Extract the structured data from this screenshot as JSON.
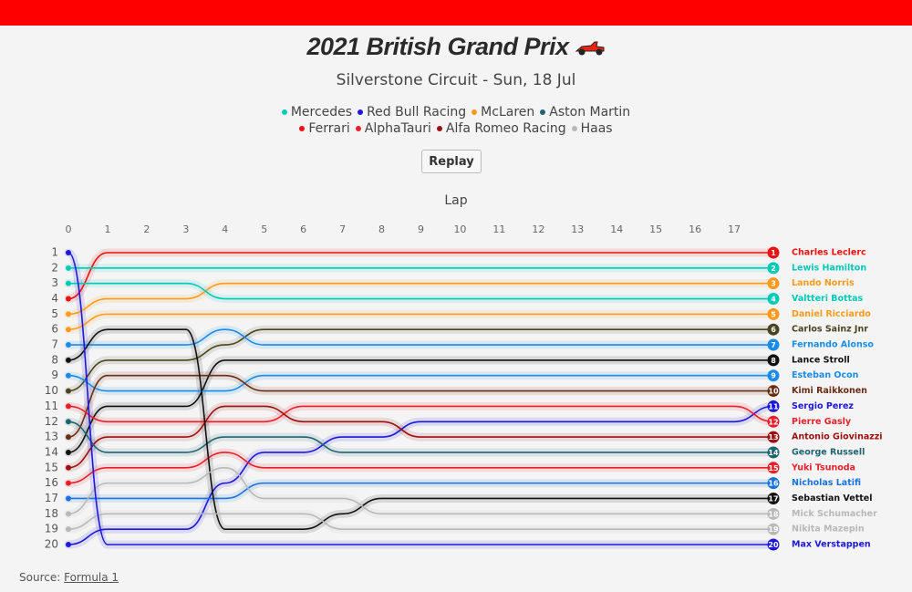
{
  "chart_data": {
    "type": "bump",
    "title": "2021 British Grand Prix",
    "subtitle": "Silverstone Circuit - Sun, 18 Jul",
    "button": "Replay",
    "xlabel": "Lap",
    "legend": [
      {
        "name": "Mercedes",
        "color": "#00c9b7"
      },
      {
        "name": "Red Bull Racing",
        "color": "#1e18d8"
      },
      {
        "name": "McLaren",
        "color": "#ff9a1e"
      },
      {
        "name": "Aston Martin",
        "color": "#1f6470"
      },
      {
        "name": "Ferrari",
        "color": "#ee1111"
      },
      {
        "name": "AlphaTauri",
        "color": "#e8202a"
      },
      {
        "name": "Alfa Romeo Racing",
        "color": "#9b1010"
      },
      {
        "name": "Haas",
        "color": "#b8b8b8"
      }
    ],
    "x": [
      0,
      1,
      2,
      3,
      4,
      5,
      6,
      7,
      8,
      9,
      10,
      11,
      12,
      13,
      14,
      15,
      16,
      17,
      18
    ],
    "xlim": [
      0,
      18
    ],
    "xticks": [
      0,
      1,
      2,
      3,
      4,
      5,
      6,
      7,
      8,
      9,
      10,
      11,
      12,
      13,
      14,
      15,
      16,
      17
    ],
    "ylim": [
      1,
      20
    ],
    "yticks": [
      1,
      2,
      3,
      4,
      5,
      6,
      7,
      8,
      9,
      10,
      11,
      12,
      13,
      14,
      15,
      16,
      17,
      18,
      19,
      20
    ],
    "series": [
      {
        "name": "Charles Leclerc",
        "color": "#ee1111",
        "values": [
          4,
          1,
          1,
          1,
          1,
          1,
          1,
          1,
          1,
          1,
          1,
          1,
          1,
          1,
          1,
          1,
          1,
          1,
          1
        ]
      },
      {
        "name": "Lewis Hamilton",
        "color": "#00c9b7",
        "values": [
          2,
          2,
          2,
          2,
          2,
          2,
          2,
          2,
          2,
          2,
          2,
          2,
          2,
          2,
          2,
          2,
          2,
          2,
          2
        ]
      },
      {
        "name": "Lando Norris",
        "color": "#ff9a1e",
        "values": [
          5,
          4,
          4,
          4,
          3,
          3,
          3,
          3,
          3,
          3,
          3,
          3,
          3,
          3,
          3,
          3,
          3,
          3,
          3
        ]
      },
      {
        "name": "Valtteri Bottas",
        "color": "#00c9b7",
        "values": [
          3,
          3,
          3,
          3,
          4,
          4,
          4,
          4,
          4,
          4,
          4,
          4,
          4,
          4,
          4,
          4,
          4,
          4,
          4
        ]
      },
      {
        "name": "Daniel Ricciardo",
        "color": "#ff9a1e",
        "values": [
          6,
          5,
          5,
          5,
          5,
          5,
          5,
          5,
          5,
          5,
          5,
          5,
          5,
          5,
          5,
          5,
          5,
          5,
          5
        ]
      },
      {
        "name": "Carlos Sainz Jnr",
        "color": "#4a4520",
        "values": [
          10,
          8,
          8,
          8,
          7,
          6,
          6,
          6,
          6,
          6,
          6,
          6,
          6,
          6,
          6,
          6,
          6,
          6,
          6
        ]
      },
      {
        "name": "Fernando Alonso",
        "color": "#1a8ce8",
        "values": [
          7,
          7,
          7,
          7,
          6,
          7,
          7,
          7,
          7,
          7,
          7,
          7,
          7,
          7,
          7,
          7,
          7,
          7,
          7
        ]
      },
      {
        "name": "Lance Stroll",
        "color": "#111111",
        "values": [
          14,
          11,
          11,
          11,
          8,
          8,
          8,
          8,
          8,
          8,
          8,
          8,
          8,
          8,
          8,
          8,
          8,
          8,
          8
        ]
      },
      {
        "name": "Esteban Ocon",
        "color": "#1a8ce8",
        "values": [
          9,
          10,
          10,
          10,
          10,
          9,
          9,
          9,
          9,
          9,
          9,
          9,
          9,
          9,
          9,
          9,
          9,
          9,
          9
        ]
      },
      {
        "name": "Kimi Raikkonen",
        "color": "#6b2c14",
        "values": [
          13,
          9,
          9,
          9,
          9,
          10,
          10,
          10,
          10,
          10,
          10,
          10,
          10,
          10,
          10,
          10,
          10,
          10,
          10
        ]
      },
      {
        "name": "Sergio Perez",
        "color": "#1e18d8",
        "values": [
          20,
          19,
          19,
          19,
          16,
          14,
          14,
          13,
          13,
          12,
          12,
          12,
          12,
          12,
          12,
          12,
          12,
          12,
          11
        ]
      },
      {
        "name": "Pierre Gasly",
        "color": "#e8202a",
        "values": [
          11,
          12,
          12,
          12,
          12,
          12,
          11,
          11,
          11,
          11,
          11,
          11,
          11,
          11,
          11,
          11,
          11,
          11,
          12
        ]
      },
      {
        "name": "Antonio Giovinazzi",
        "color": "#9b1010",
        "values": [
          15,
          13,
          13,
          13,
          11,
          11,
          12,
          12,
          12,
          13,
          13,
          13,
          13,
          13,
          13,
          13,
          13,
          13,
          13
        ]
      },
      {
        "name": "George Russell",
        "color": "#1f6470",
        "values": [
          12,
          14,
          14,
          14,
          13,
          13,
          13,
          14,
          14,
          14,
          14,
          14,
          14,
          14,
          14,
          14,
          14,
          14,
          14
        ]
      },
      {
        "name": "Yuki Tsunoda",
        "color": "#e8202a",
        "values": [
          16,
          15,
          15,
          15,
          14,
          15,
          15,
          15,
          15,
          15,
          15,
          15,
          15,
          15,
          15,
          15,
          15,
          15,
          15
        ]
      },
      {
        "name": "Nicholas Latifi",
        "color": "#1a72e0",
        "values": [
          17,
          17,
          17,
          17,
          17,
          16,
          16,
          16,
          16,
          16,
          16,
          16,
          16,
          16,
          16,
          16,
          16,
          16,
          16
        ]
      },
      {
        "name": "Sebastian Vettel",
        "color": "#111111",
        "values": [
          8,
          6,
          6,
          6,
          19,
          19,
          19,
          18,
          17,
          17,
          17,
          17,
          17,
          17,
          17,
          17,
          17,
          17,
          17
        ]
      },
      {
        "name": "Mick Schumacher",
        "color": "#b8b8b8",
        "values": [
          18,
          16,
          16,
          16,
          15,
          17,
          17,
          17,
          18,
          18,
          18,
          18,
          18,
          18,
          18,
          18,
          18,
          18,
          18
        ]
      },
      {
        "name": "Nikita Mazepin",
        "color": "#b8b8b8",
        "values": [
          19,
          18,
          18,
          18,
          18,
          18,
          18,
          19,
          19,
          19,
          19,
          19,
          19,
          19,
          19,
          19,
          19,
          19,
          19
        ]
      },
      {
        "name": "Max Verstappen",
        "color": "#1e18d8",
        "values": [
          1,
          20,
          20,
          20,
          20,
          20,
          20,
          20,
          20,
          20,
          20,
          20,
          20,
          20,
          20,
          20,
          20,
          20,
          20
        ]
      }
    ],
    "source": {
      "label": "Source:",
      "link": "Formula 1"
    }
  }
}
